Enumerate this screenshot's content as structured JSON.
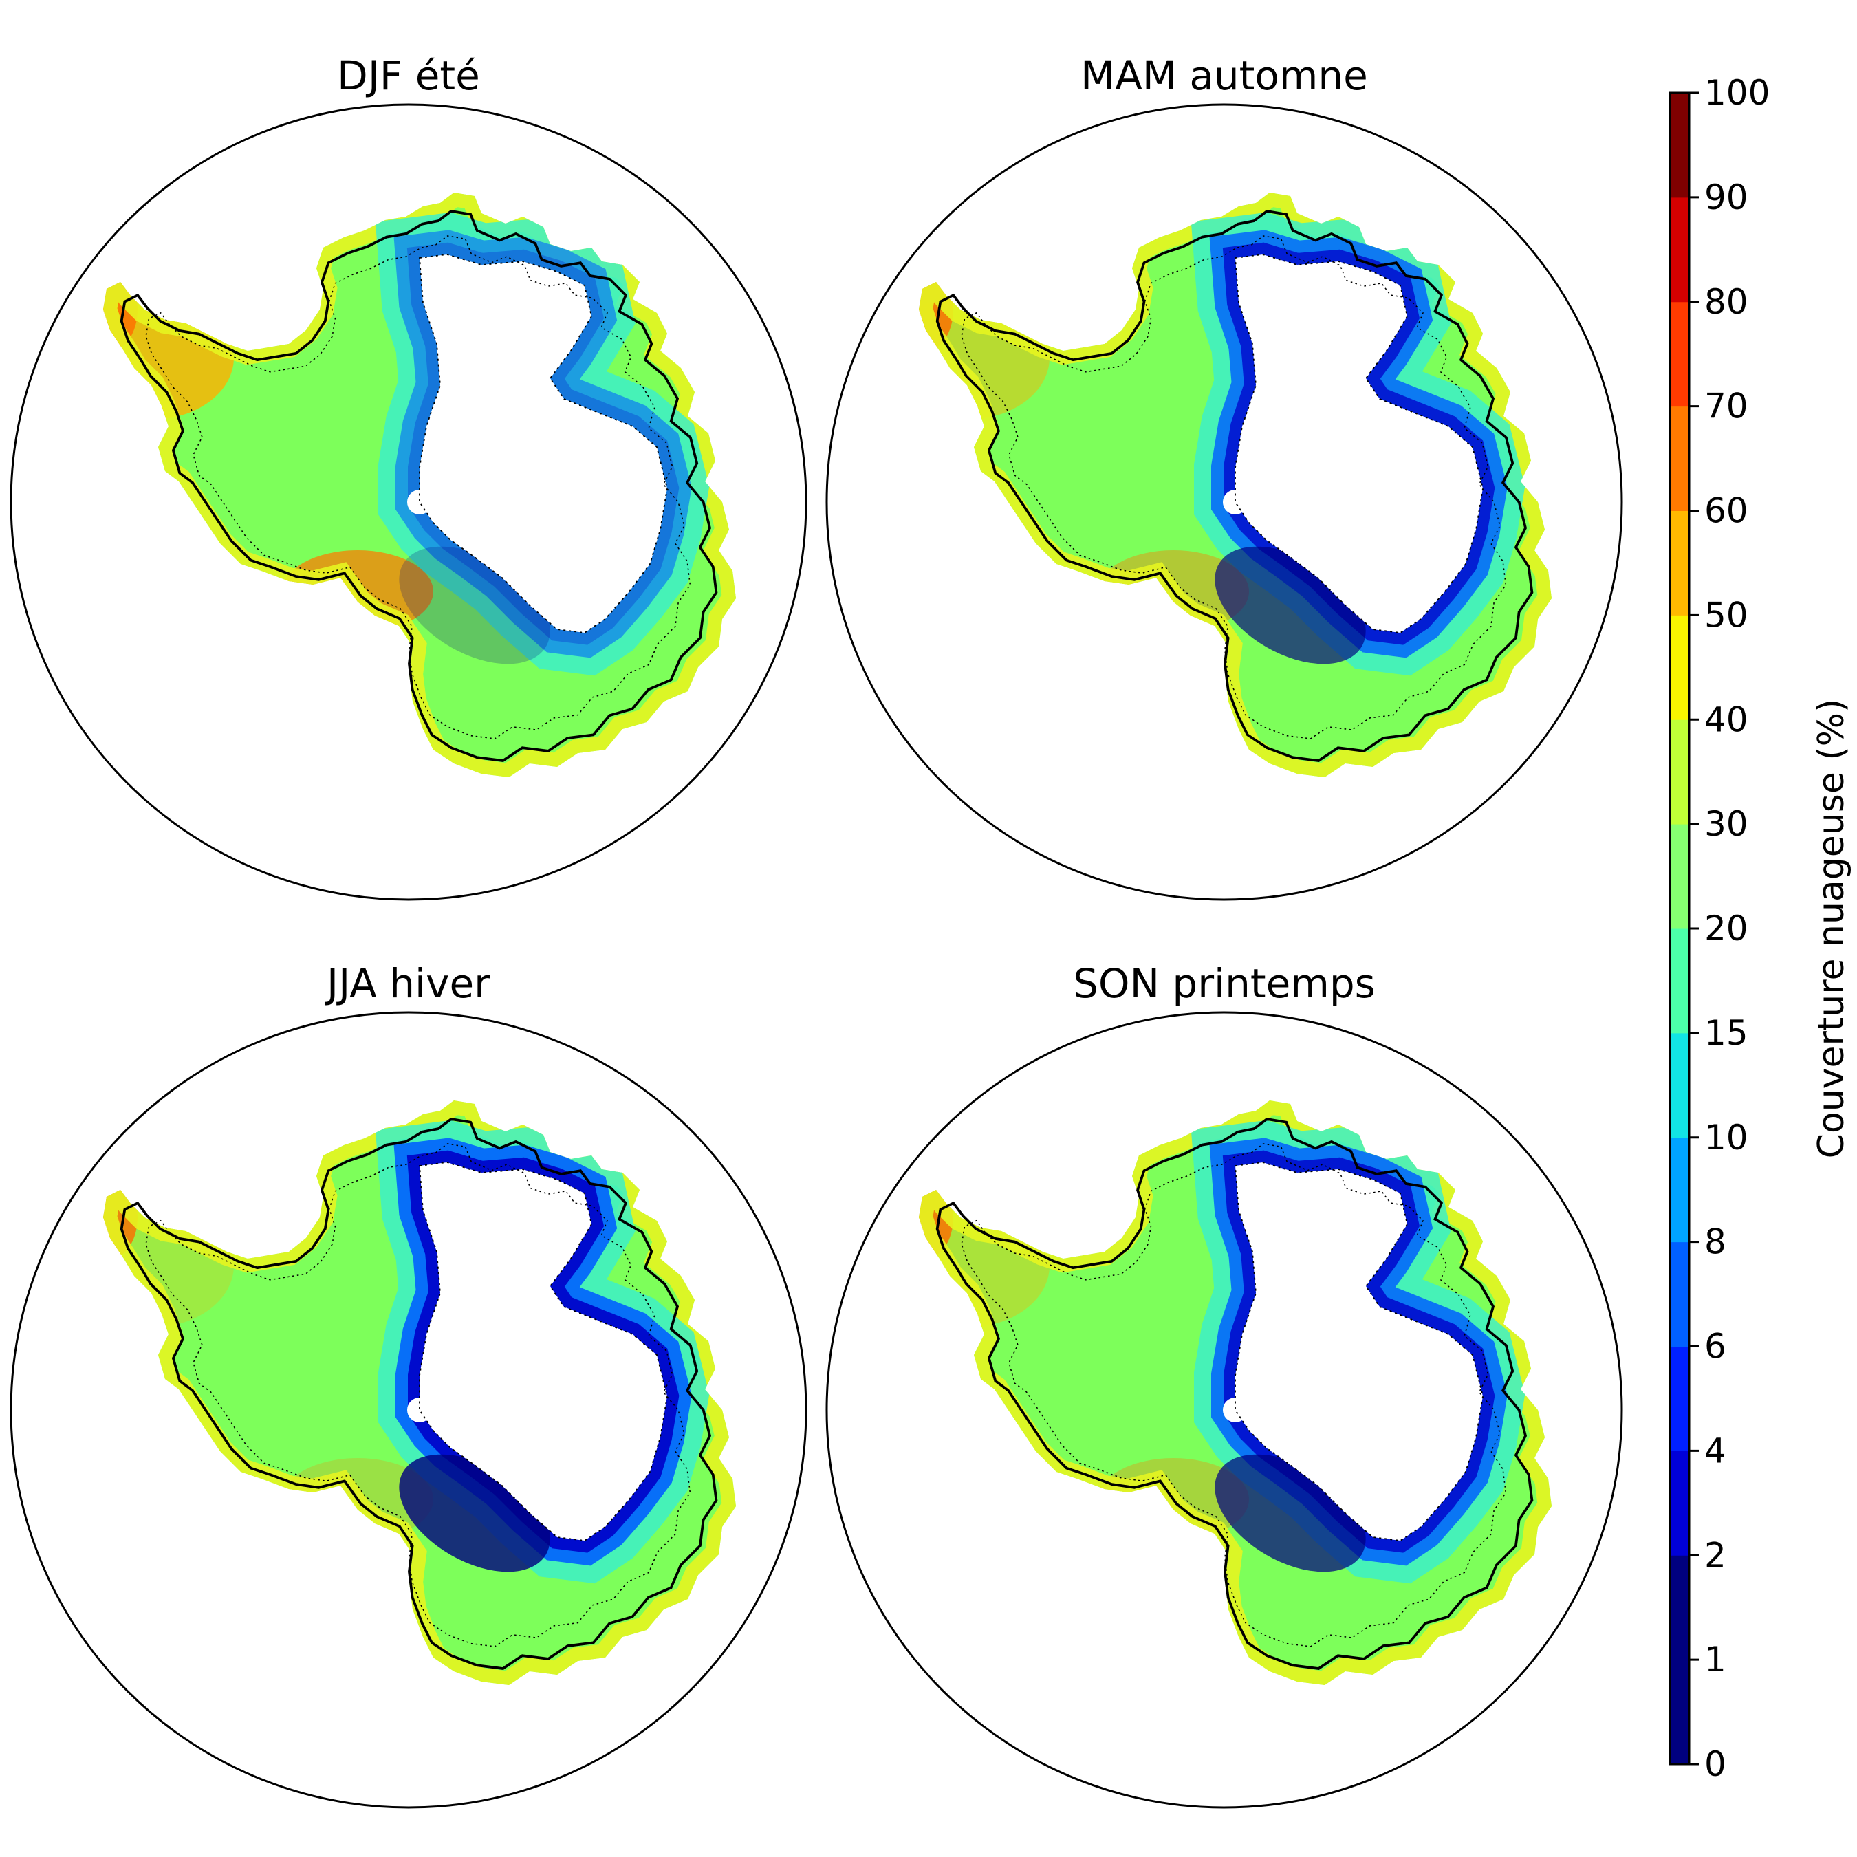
{
  "panels": [
    {
      "title": "DJF été",
      "key": "djf",
      "blue": 0.25,
      "green": 0.55,
      "warm": 0.8
    },
    {
      "title": "MAM automne",
      "key": "mam",
      "blue": 0.75,
      "green": 0.5,
      "warm": 0.45
    },
    {
      "title": "JJA hiver",
      "key": "jja",
      "blue": 0.9,
      "green": 0.35,
      "warm": 0.25
    },
    {
      "title": "SON printemps",
      "key": "son",
      "blue": 0.8,
      "green": 0.45,
      "warm": 0.35
    }
  ],
  "colorbar": {
    "label": "Couverture nuageuse (%)",
    "ticks": [
      "0",
      "1",
      "2",
      "4",
      "6",
      "8",
      "10",
      "15",
      "20",
      "30",
      "40",
      "50",
      "60",
      "70",
      "80",
      "90",
      "100"
    ],
    "colormap": "jet",
    "colors": [
      "#00007f",
      "#0000d8",
      "#0020ff",
      "#0060ff",
      "#00a4ff",
      "#12e4e4",
      "#4cffaa",
      "#86ff71",
      "#c0ff37",
      "#f9f500",
      "#ffb900",
      "#ff7a00",
      "#ff3b00",
      "#d40000",
      "#7f0000"
    ]
  }
}
